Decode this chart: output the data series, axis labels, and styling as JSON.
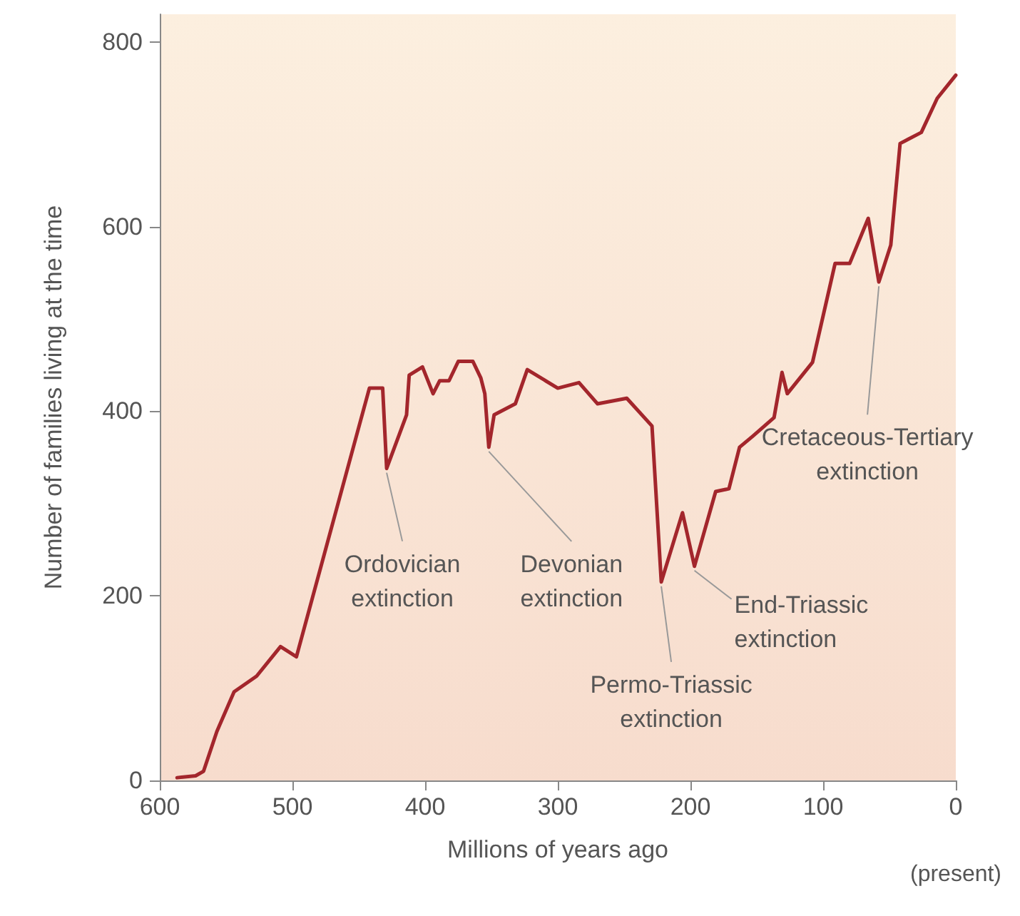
{
  "chart_data": {
    "type": "line",
    "xlabel": "Millions of years ago",
    "ylabel": "Number of families living at the time",
    "x": [
      587,
      573,
      567,
      557,
      544,
      527,
      509,
      497,
      442,
      432,
      429,
      414,
      412,
      402,
      394,
      389,
      382,
      375,
      364,
      358,
      355,
      352,
      348,
      332,
      323,
      300,
      284,
      270,
      248,
      229,
      222,
      206,
      197,
      181,
      171,
      163,
      153,
      137,
      131,
      127,
      108,
      91,
      80,
      66,
      58,
      49,
      42,
      26,
      14,
      0
    ],
    "series": [
      {
        "color": "#a3262c",
        "values": [
          3,
          5,
          10,
          53,
          96,
          113,
          145,
          134,
          425,
          425,
          338,
          396,
          439,
          448,
          419,
          433,
          433,
          454,
          454,
          436,
          419,
          361,
          396,
          408,
          445,
          425,
          431,
          408,
          414,
          384,
          215,
          290,
          232,
          313,
          316,
          361,
          373,
          393,
          442,
          419,
          453,
          560,
          560,
          609,
          540,
          580,
          690,
          702,
          739,
          764
        ]
      }
    ],
    "xlim": [
      600,
      0
    ],
    "xticks": [
      600,
      500,
      400,
      300,
      200,
      100,
      0
    ],
    "ylim": [
      0,
      830
    ],
    "yticks": [
      0,
      200,
      400,
      600,
      800
    ],
    "grid": false,
    "marker": "none",
    "line_style": "solid",
    "annotations": [
      {
        "text": "Ordovician extinction",
        "x": 429,
        "y": 338
      },
      {
        "text": "Devonian extinction",
        "x": 352,
        "y": 361
      },
      {
        "text": "Permo-Triassic extinction",
        "x": 222,
        "y": 215
      },
      {
        "text": "End-Triassic extinction",
        "x": 197,
        "y": 232
      },
      {
        "text": "Cretaceous-Tertiary extinction",
        "x": 58,
        "y": 540
      },
      "(present)"
    ]
  }
}
